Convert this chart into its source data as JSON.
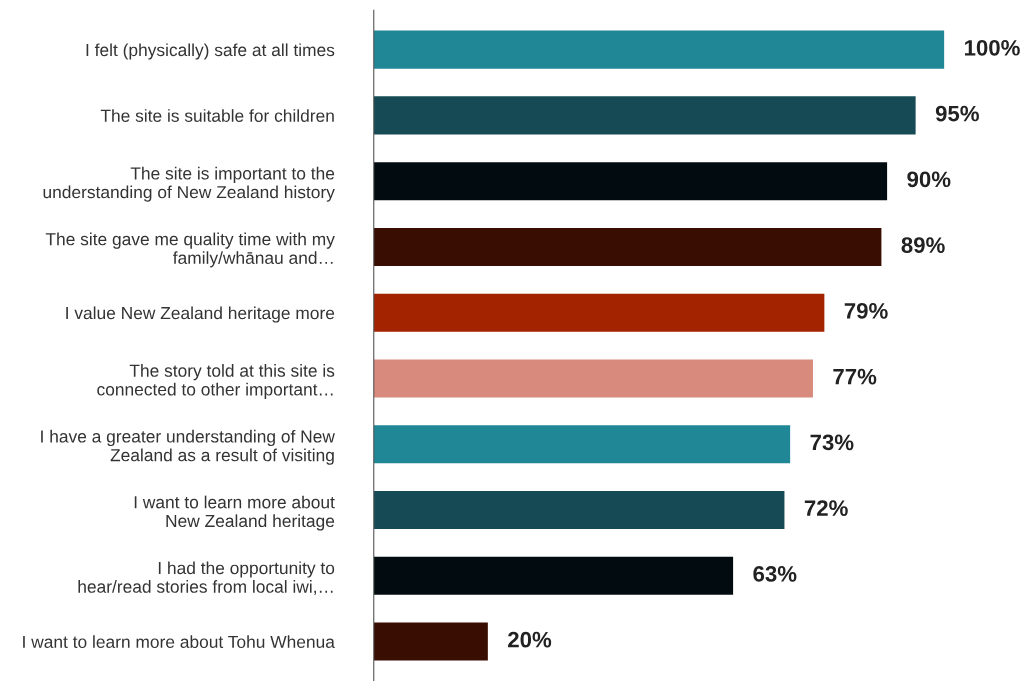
{
  "chart_data": {
    "type": "bar",
    "orientation": "horizontal",
    "categories": [
      "I felt (physically) safe at all times",
      "The site is suitable for children",
      "The site is important to the\nunderstanding of New Zealand history",
      "The site gave me quality time with my\nfamily/whānau and…",
      "I value New Zealand heritage more",
      "The story told at this site is\nconnected to other important…",
      "I have a greater understanding of New\nZealand as a result of visiting",
      "I want to learn more about\nNew Zealand heritage",
      "I had the opportunity to\nhear/read stories from local iwi,…",
      "I want to learn more about Tohu Whenua"
    ],
    "values": [
      100,
      95,
      90,
      89,
      79,
      77,
      73,
      72,
      63,
      20
    ],
    "value_labels": [
      "100%",
      "95%",
      "90%",
      "89%",
      "79%",
      "77%",
      "73%",
      "72%",
      "63%",
      "20%"
    ],
    "colors": [
      "#1f8796",
      "#164b55",
      "#020c10",
      "#3a0d02",
      "#a32200",
      "#d88a7c",
      "#1f8796",
      "#164b55",
      "#020c10",
      "#3a0d02"
    ],
    "grid": false,
    "legend": false
  }
}
